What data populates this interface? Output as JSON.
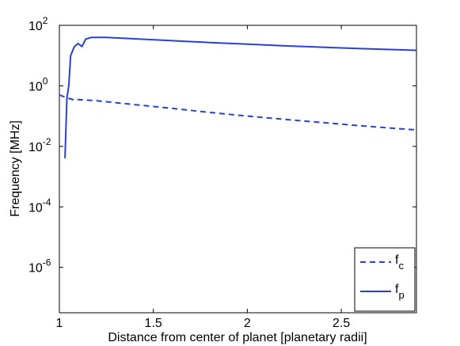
{
  "chart_data": {
    "type": "line",
    "title": "",
    "xlabel": "Distance from center of planet [planetary radii]",
    "ylabel": "Frequency [MHz]",
    "xlim": [
      1,
      2.9
    ],
    "ylim_log10": [
      -7.5,
      2
    ],
    "yscale": "log",
    "grid": false,
    "legend_placement": "bottom-right",
    "x_ticks": [
      {
        "value": 1,
        "label": "1"
      },
      {
        "value": 1.5,
        "label": "1.5"
      },
      {
        "value": 2,
        "label": "2"
      },
      {
        "value": 2.5,
        "label": "2.5"
      }
    ],
    "y_ticks": [
      {
        "exponent": 2,
        "base": "10",
        "sup": "2"
      },
      {
        "exponent": 0,
        "base": "10",
        "sup": "0"
      },
      {
        "exponent": -2,
        "base": "10",
        "sup": "-2"
      },
      {
        "exponent": -4,
        "base": "10",
        "sup": "-4"
      },
      {
        "exponent": -6,
        "base": "10",
        "sup": "-6"
      }
    ],
    "series": [
      {
        "name": "f",
        "subscript": "c",
        "style": "dashed",
        "color": "#2a3fd6",
        "points": [
          [
            1.0,
            0.5
          ],
          [
            1.02,
            0.45
          ],
          [
            1.04,
            0.4
          ],
          [
            1.06,
            0.37
          ],
          [
            1.08,
            0.34
          ],
          [
            1.09,
            0.36
          ],
          [
            1.1,
            0.35
          ],
          [
            1.2,
            0.32
          ],
          [
            1.4,
            0.24
          ],
          [
            1.6,
            0.18
          ],
          [
            1.8,
            0.132
          ],
          [
            2.0,
            0.1
          ],
          [
            2.2,
            0.078
          ],
          [
            2.4,
            0.061
          ],
          [
            2.6,
            0.048
          ],
          [
            2.9,
            0.035
          ]
        ]
      },
      {
        "name": "f",
        "subscript": "p",
        "style": "solid",
        "color": "#2a3fd6",
        "points": [
          [
            1.03,
            0.004
          ],
          [
            1.04,
            0.4
          ],
          [
            1.05,
            1.0
          ],
          [
            1.06,
            10
          ],
          [
            1.08,
            20
          ],
          [
            1.1,
            25
          ],
          [
            1.12,
            20
          ],
          [
            1.14,
            35
          ],
          [
            1.17,
            40
          ],
          [
            1.25,
            40
          ],
          [
            1.4,
            36
          ],
          [
            1.6,
            31
          ],
          [
            1.8,
            27
          ],
          [
            2.0,
            24
          ],
          [
            2.2,
            21
          ],
          [
            2.4,
            19
          ],
          [
            2.6,
            17
          ],
          [
            2.9,
            15
          ]
        ]
      }
    ]
  }
}
